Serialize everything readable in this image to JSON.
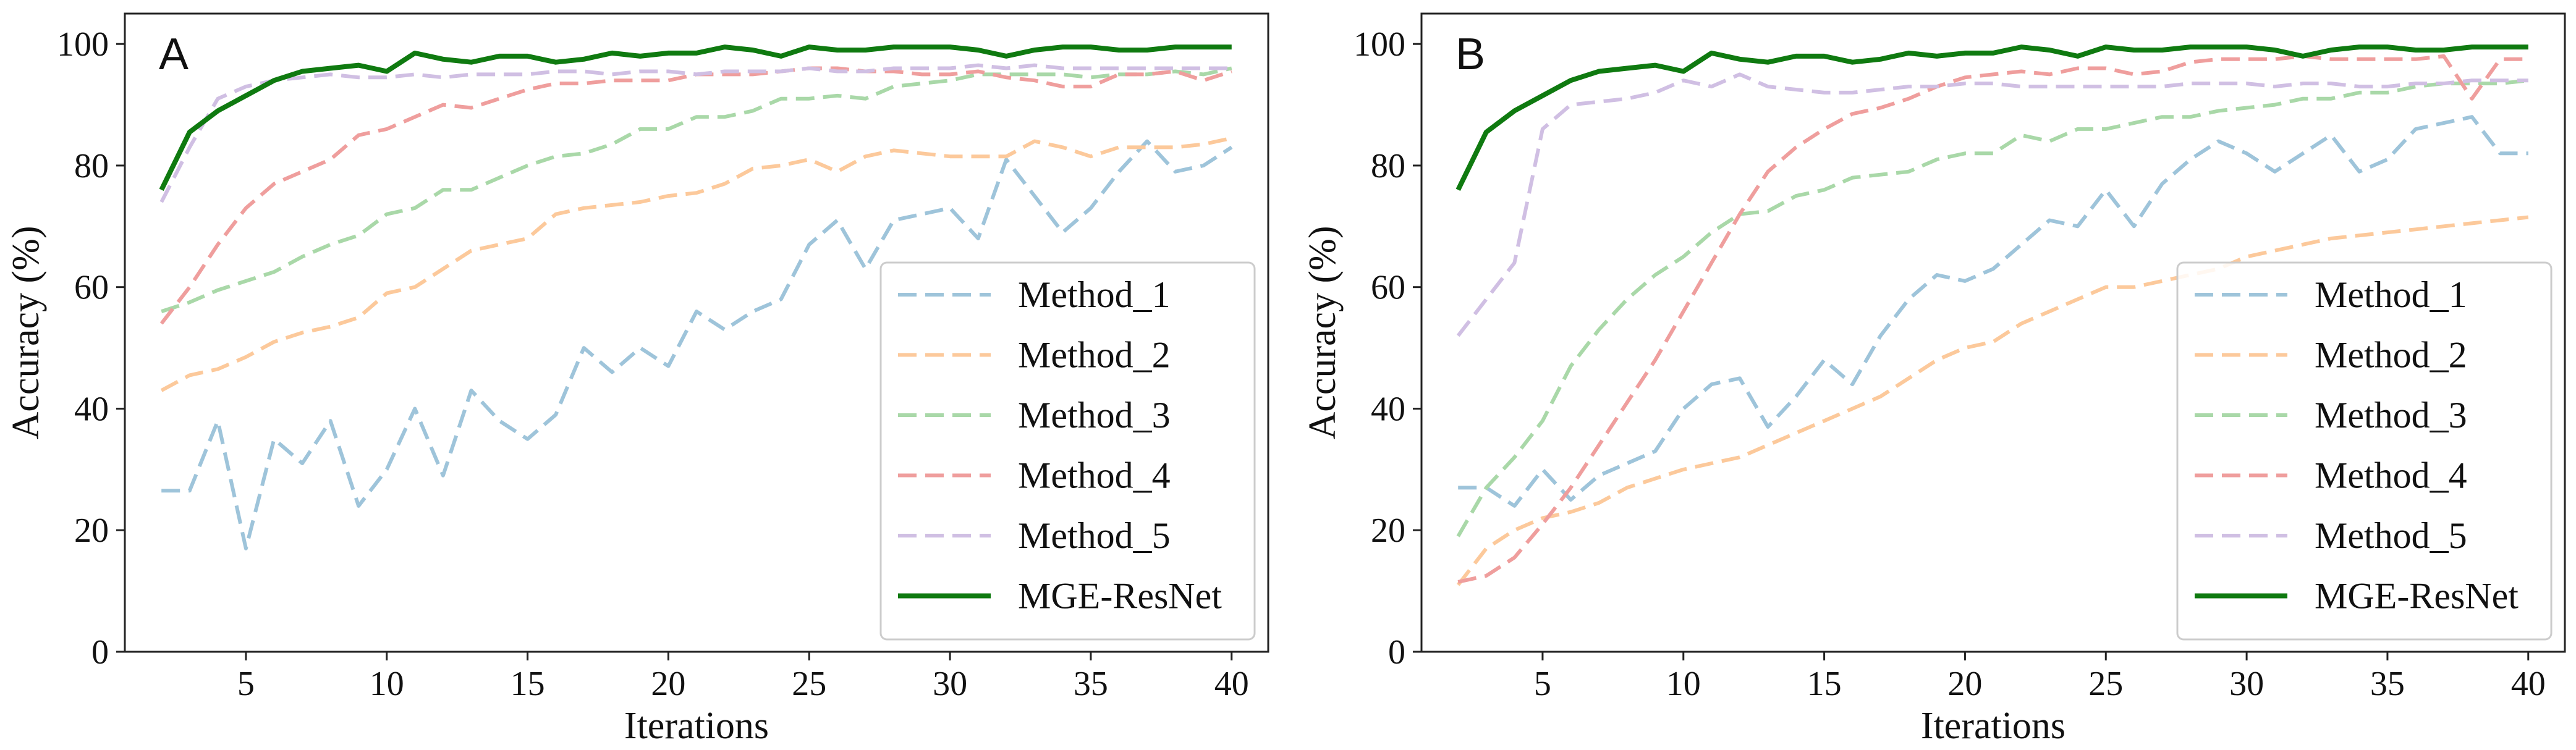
{
  "chart_data": [
    {
      "type": "line",
      "panel_label": "A",
      "title": "",
      "xlabel": "Iterations",
      "ylabel": "Accuracy (%)",
      "xlim": [
        0.7,
        41.3
      ],
      "ylim": [
        0,
        105
      ],
      "xticks": [
        5,
        10,
        15,
        20,
        25,
        30,
        35,
        40
      ],
      "yticks": [
        0,
        20,
        40,
        60,
        80,
        100
      ],
      "grid": false,
      "legend_position": "lower-right",
      "x": [
        2,
        3,
        4,
        5,
        6,
        7,
        8,
        9,
        10,
        11,
        12,
        13,
        14,
        15,
        16,
        17,
        18,
        19,
        20,
        21,
        22,
        23,
        24,
        25,
        26,
        27,
        28,
        29,
        30,
        31,
        32,
        33,
        34,
        35,
        36,
        37,
        38,
        39,
        40
      ],
      "series": [
        {
          "name": "Method_1",
          "color": "#9ec4da",
          "dash": "dashed",
          "values": [
            26.5,
            26.5,
            38,
            17,
            35,
            31,
            38,
            24,
            30,
            40,
            29,
            43,
            38,
            35,
            39,
            50,
            46,
            50,
            47,
            56,
            53,
            56,
            58,
            67,
            71,
            63,
            71,
            72,
            73,
            68,
            81,
            75,
            69,
            73,
            79,
            84,
            79,
            80,
            83
          ]
        },
        {
          "name": "Method_2",
          "color": "#fcc99b",
          "dash": "dashed",
          "values": [
            43,
            45.5,
            46.5,
            48.5,
            51,
            52.5,
            53.5,
            55,
            59,
            60,
            63,
            66,
            67,
            68,
            72,
            73,
            73.5,
            74,
            75,
            75.5,
            77,
            79.5,
            80,
            81,
            79,
            81.5,
            82.5,
            82,
            81.5,
            81.5,
            81.5,
            84,
            83,
            81.5,
            83,
            83,
            83,
            83.5,
            84.5
          ]
        },
        {
          "name": "Method_3",
          "color": "#a9d8a8",
          "dash": "dashed",
          "values": [
            56,
            57.5,
            59.5,
            61,
            62.5,
            65,
            67,
            68.5,
            72,
            73,
            76,
            76,
            78,
            80,
            81.5,
            82,
            83.5,
            86,
            86,
            88,
            88,
            89,
            91,
            91,
            91.5,
            91,
            93,
            93.5,
            94,
            95,
            95,
            95,
            95,
            94.5,
            95,
            95,
            95.5,
            95,
            96
          ]
        },
        {
          "name": "Method_4",
          "color": "#ef9e9d",
          "dash": "dashed",
          "values": [
            54,
            60,
            67,
            73,
            77,
            79,
            81,
            85,
            86,
            88,
            90,
            89.5,
            91,
            92.5,
            93.5,
            93.5,
            94,
            94,
            94,
            95,
            95,
            95,
            95.5,
            96,
            96,
            95.5,
            95.5,
            95,
            95,
            95.5,
            94.5,
            94,
            93,
            93,
            95,
            95,
            95.5,
            94,
            95.5
          ]
        },
        {
          "name": "Method_5",
          "color": "#d0bfe3",
          "dash": "dashed",
          "values": [
            74,
            83,
            91,
            93,
            94,
            94.5,
            95,
            94.5,
            94.5,
            95,
            94.5,
            95,
            95,
            95,
            95.5,
            95.5,
            95,
            95.5,
            95.5,
            95,
            95.5,
            95.5,
            95.5,
            96,
            95.5,
            95.5,
            96,
            96,
            96,
            96.5,
            96,
            96.5,
            96,
            96,
            96,
            96,
            96,
            96,
            96
          ]
        },
        {
          "name": "MGE-ResNet",
          "color": "#0f7a10",
          "dash": "solid",
          "values": [
            76,
            85.5,
            89,
            91.5,
            94,
            95.5,
            96,
            96.5,
            95.5,
            98.5,
            97.5,
            97,
            98,
            98,
            97,
            97.5,
            98.5,
            98,
            98.5,
            98.5,
            99.5,
            99,
            98,
            99.5,
            99,
            99,
            99.5,
            99.5,
            99.5,
            99,
            98,
            99,
            99.5,
            99.5,
            99,
            99,
            99.5,
            99.5,
            99.5
          ]
        }
      ]
    },
    {
      "type": "line",
      "panel_label": "B",
      "title": "",
      "xlabel": "Iterations",
      "ylabel": "Accuracy (%)",
      "xlim": [
        0.7,
        41.3
      ],
      "ylim": [
        0,
        105
      ],
      "xticks": [
        5,
        10,
        15,
        20,
        25,
        30,
        35,
        40
      ],
      "yticks": [
        0,
        20,
        40,
        60,
        80,
        100
      ],
      "grid": false,
      "legend_position": "lower-right",
      "x": [
        2,
        3,
        4,
        5,
        6,
        7,
        8,
        9,
        10,
        11,
        12,
        13,
        14,
        15,
        16,
        17,
        18,
        19,
        20,
        21,
        22,
        23,
        24,
        25,
        26,
        27,
        28,
        29,
        30,
        31,
        32,
        33,
        34,
        35,
        36,
        37,
        38,
        39,
        40
      ],
      "series": [
        {
          "name": "Method_1",
          "color": "#9ec4da",
          "dash": "dashed",
          "values": [
            27,
            27,
            24,
            30,
            25,
            29,
            31,
            33,
            40,
            44,
            45,
            37,
            42,
            48,
            44,
            52,
            58,
            62,
            61,
            63,
            67,
            71,
            70,
            76,
            70,
            77,
            81,
            84,
            82,
            79,
            82,
            85,
            79,
            81,
            86,
            87,
            88,
            82,
            82
          ]
        },
        {
          "name": "Method_2",
          "color": "#fcc99b",
          "dash": "dashed",
          "values": [
            11,
            17,
            20,
            22,
            23,
            24.5,
            27,
            28.5,
            30,
            31,
            32,
            34,
            36,
            38,
            40,
            42,
            45,
            48,
            50,
            51,
            54,
            56,
            58,
            60,
            60,
            61,
            62,
            63,
            65,
            66,
            67,
            68,
            68.5,
            69,
            69.5,
            70,
            70.5,
            71,
            71.5
          ]
        },
        {
          "name": "Method_3",
          "color": "#a9d8a8",
          "dash": "dashed",
          "values": [
            19,
            27,
            32,
            38,
            47,
            53,
            58,
            62,
            65,
            69,
            72,
            72.5,
            75,
            76,
            78,
            78.5,
            79,
            81,
            82,
            82,
            85,
            84,
            86,
            86,
            87,
            88,
            88,
            89,
            89.5,
            90,
            91,
            91,
            92,
            92,
            93,
            93.5,
            93.5,
            93.5,
            94
          ]
        },
        {
          "name": "Method_4",
          "color": "#ef9e9d",
          "dash": "dashed",
          "values": [
            11.5,
            12.5,
            15.5,
            21,
            27,
            34,
            41,
            48,
            56,
            64,
            72,
            79,
            83,
            86,
            88.5,
            89.5,
            91,
            93,
            94.5,
            95,
            95.5,
            95,
            96,
            96,
            95,
            95.5,
            97,
            97.5,
            97.5,
            97.5,
            98,
            97.5,
            97.5,
            97.5,
            97.5,
            98,
            91,
            97.5,
            97.5
          ]
        },
        {
          "name": "Method_5",
          "color": "#d0bfe3",
          "dash": "dashed",
          "values": [
            52,
            58,
            64,
            86,
            90,
            90.5,
            91,
            92,
            94,
            93,
            95,
            93,
            92.5,
            92,
            92,
            92.5,
            93,
            93,
            93.5,
            93.5,
            93,
            93,
            93,
            93,
            93,
            93,
            93.5,
            93.5,
            93.5,
            93,
            93.5,
            93.5,
            93,
            93,
            93.5,
            93.5,
            94,
            94,
            94
          ]
        },
        {
          "name": "MGE-ResNet",
          "color": "#0f7a10",
          "dash": "solid",
          "values": [
            76,
            85.5,
            89,
            91.5,
            94,
            95.5,
            96,
            96.5,
            95.5,
            98.5,
            97.5,
            97,
            98,
            98,
            97,
            97.5,
            98.5,
            98,
            98.5,
            98.5,
            99.5,
            99,
            98,
            99.5,
            99,
            99,
            99.5,
            99.5,
            99.5,
            99,
            98,
            99,
            99.5,
            99.5,
            99,
            99,
            99.5,
            99.5,
            99.5
          ]
        }
      ]
    }
  ]
}
